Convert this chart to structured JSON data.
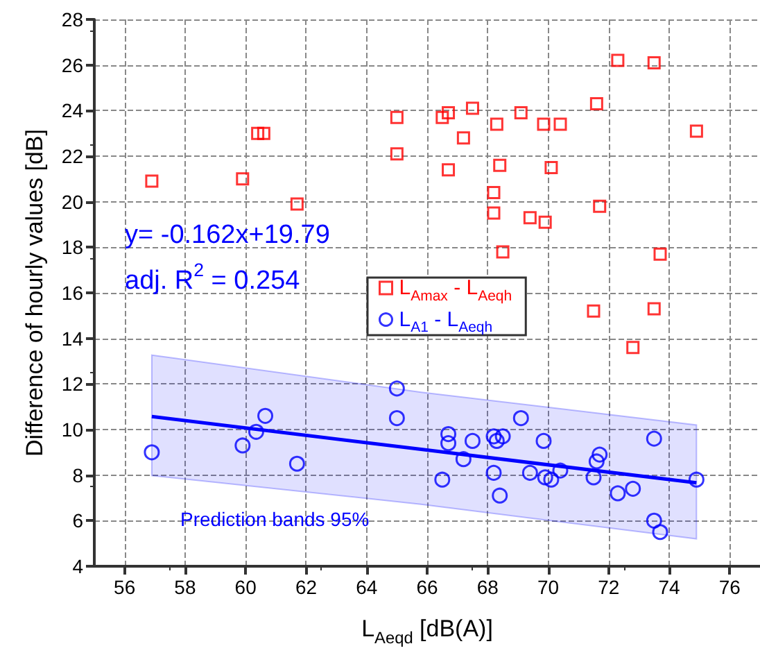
{
  "chart_data": {
    "type": "scatter",
    "xlabel": "L$_{Aeqd}$ [dB(A)]",
    "ylabel": "Difference of hourly values [dB]",
    "xlim": [
      55,
      77
    ],
    "xticks": [
      56,
      58,
      60,
      62,
      64,
      66,
      68,
      70,
      72,
      74,
      76
    ],
    "ylim": [
      4,
      28
    ],
    "yticks": [
      4,
      6,
      8,
      10,
      12,
      14,
      16,
      18,
      20,
      22,
      24,
      26,
      28
    ],
    "grid": true,
    "legend": "right",
    "annotations": [
      "y= -0.162x+19.79",
      "adj. R$^{2}$ = 0.254",
      "Prediction bands 95%"
    ],
    "series": [
      {
        "name": "L$_{Amax}$ - L$_{Aeqh}$",
        "color": "#ff0000",
        "marker": "square",
        "x": [
          56.9,
          59.9,
          60.4,
          60.6,
          61.7,
          65.0,
          65.0,
          66.5,
          66.7,
          67.5,
          67.2,
          66.7,
          68.3,
          69.1,
          69.85,
          70.4,
          68.4,
          70.1,
          68.2,
          68.2,
          69.4,
          69.9,
          68.5,
          71.6,
          72.3,
          73.5,
          71.7,
          74.9,
          73.7,
          71.5,
          73.5,
          72.8
        ],
        "values": [
          20.9,
          21.0,
          23.0,
          23.0,
          19.9,
          23.7,
          22.1,
          23.7,
          23.9,
          24.1,
          22.8,
          21.4,
          23.4,
          23.9,
          23.4,
          23.4,
          21.6,
          21.5,
          20.4,
          19.5,
          19.3,
          19.1,
          17.8,
          24.3,
          26.2,
          26.1,
          19.8,
          23.1,
          17.7,
          15.2,
          15.3,
          13.6
        ]
      },
      {
        "name": "L$_{A1}$ - L$_{Aeqh}$",
        "color": "#0000ff",
        "marker": "circle",
        "x": [
          56.9,
          59.9,
          60.35,
          60.65,
          61.7,
          65.0,
          65.0,
          66.5,
          66.7,
          66.7,
          67.2,
          67.5,
          68.2,
          68.3,
          68.5,
          68.2,
          68.4,
          69.1,
          69.85,
          69.4,
          69.9,
          70.1,
          70.4,
          71.5,
          71.6,
          71.7,
          72.3,
          72.8,
          73.5,
          73.5,
          73.7,
          74.9
        ],
        "values": [
          9.0,
          9.3,
          9.9,
          10.6,
          8.5,
          11.8,
          10.5,
          7.8,
          9.8,
          9.4,
          8.7,
          9.5,
          9.7,
          9.5,
          9.7,
          8.1,
          7.1,
          10.5,
          9.5,
          8.1,
          7.9,
          7.8,
          8.2,
          7.9,
          8.6,
          8.9,
          7.2,
          7.4,
          9.6,
          6.0,
          5.5,
          7.8
        ]
      },
      {
        "type": "line",
        "color": "#0000ff",
        "marker": "none",
        "x": [
          56.9,
          65.8,
          74.9
        ],
        "values": [
          10.57,
          9.13,
          7.66
        ],
        "lower": [
          7.98,
          6.72,
          5.2
        ],
        "upper": [
          13.27,
          11.64,
          10.2
        ]
      }
    ]
  }
}
